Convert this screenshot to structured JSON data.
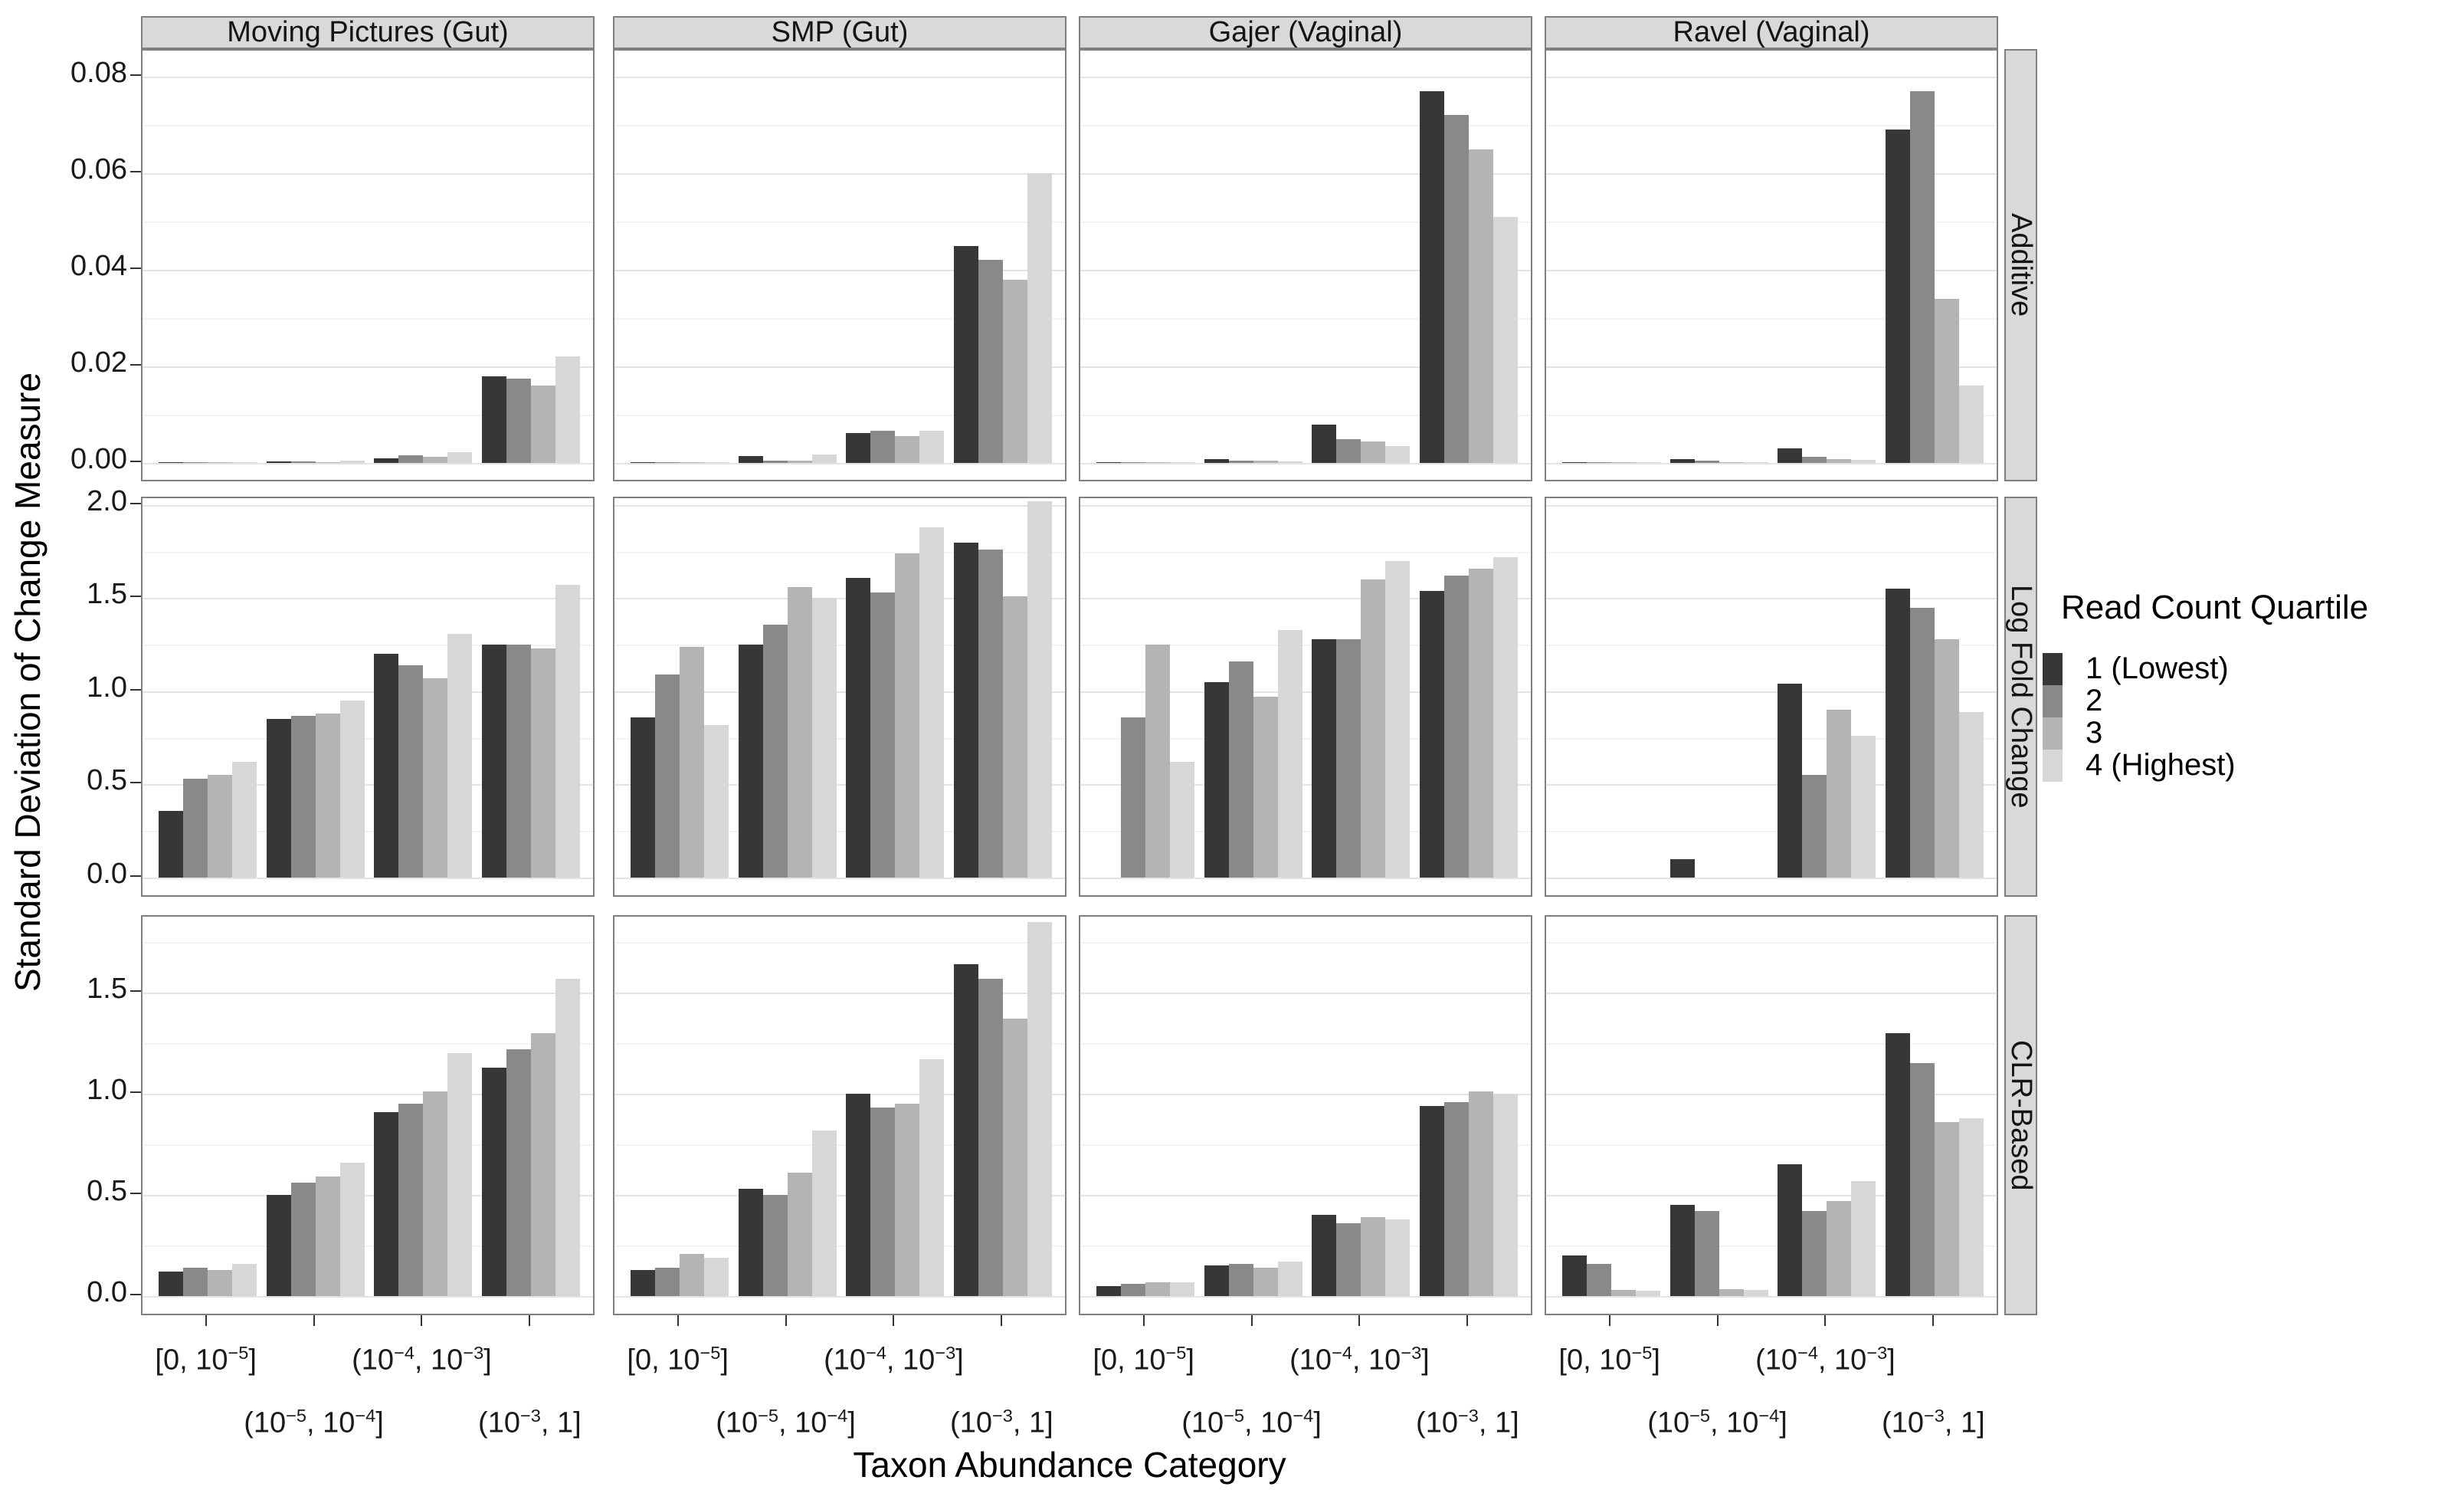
{
  "figure": {
    "x_axis_title": "Taxon Abundance Category",
    "y_axis_title": "Standard Deviation of Change Measure",
    "legend_title": "Read Count Quartile"
  },
  "chart_data": {
    "type": "bar",
    "title": "",
    "xlabel": "Taxon Abundance Category",
    "ylabel": "Standard Deviation of Change Measure",
    "legend_title": "Read Count Quartile",
    "legend_position": "right",
    "grid": "major and minor horizontal gridlines",
    "facet_columns": [
      "Moving Pictures (Gut)",
      "SMP (Gut)",
      "Gajer (Vaginal)",
      "Ravel (Vaginal)"
    ],
    "facet_rows": [
      "Additive",
      "Log Fold Change",
      "CLR-Based"
    ],
    "categories": [
      "[0, 10^-5]",
      "(10^-5, 10^-4]",
      "(10^-4, 10^-3]",
      "(10^-3, 1]"
    ],
    "series_labels": [
      "1 (Lowest)",
      "2",
      "3",
      "4 (Highest)"
    ],
    "series_colors": [
      "#373737",
      "#898989",
      "#b4b4b4",
      "#d7d7d7"
    ],
    "rows": [
      {
        "label": "Additive",
        "ymax": 0.0854,
        "minor_step": 0.01,
        "ytick_values": [
          0,
          0.02,
          0.04,
          0.06,
          0.08
        ],
        "ytick_labels": [
          "0.00",
          "0.02",
          "0.04",
          "0.06",
          "0.08"
        ],
        "panels": [
          {
            "column": "Moving Pictures (Gut)",
            "values": [
              [
                0.0001,
                0.0001,
                0.0001,
                0.0002
              ],
              [
                0.0003,
                0.0003,
                0.0002,
                0.0004
              ],
              [
                0.001,
                0.0016,
                0.0013,
                0.0022
              ],
              [
                0.018,
                0.0175,
                0.016,
                0.022
              ]
            ]
          },
          {
            "column": "SMP (Gut)",
            "values": [
              [
                0.0001,
                0.0001,
                0.0001,
                0.0001
              ],
              [
                0.0015,
                0.0004,
                0.0004,
                0.0017
              ],
              [
                0.0062,
                0.0067,
                0.0056,
                0.0067
              ],
              [
                0.045,
                0.042,
                0.038,
                0.06
              ]
            ]
          },
          {
            "column": "Gajer (Vaginal)",
            "values": [
              [
                0.0001,
                0.0001,
                0.0001,
                0.0001
              ],
              [
                0.0008,
                0.0005,
                0.0004,
                0.0003
              ],
              [
                0.008,
                0.005,
                0.0045,
                0.0035
              ],
              [
                0.077,
                0.072,
                0.065,
                0.051
              ]
            ]
          },
          {
            "column": "Ravel (Vaginal)",
            "values": [
              [
                0.0001,
                0.0001,
                0.0001,
                0.0001
              ],
              [
                0.0008,
                0.0004,
                0.0002,
                0.0002
              ],
              [
                0.003,
                0.0012,
                0.0008,
                0.0006
              ],
              [
                0.069,
                0.077,
                0.034,
                0.016
              ]
            ]
          }
        ]
      },
      {
        "label": "Log Fold Change",
        "ymax": 2.037,
        "minor_step": 0.25,
        "ytick_values": [
          0,
          0.5,
          1.0,
          1.5,
          2.0
        ],
        "ytick_labels": [
          "0.0",
          "0.5",
          "1.0",
          "1.5",
          "2.0"
        ],
        "panels": [
          {
            "column": "Moving Pictures (Gut)",
            "values": [
              [
                0.36,
                0.53,
                0.55,
                0.62
              ],
              [
                0.85,
                0.87,
                0.88,
                0.95
              ],
              [
                1.2,
                1.14,
                1.07,
                1.31
              ],
              [
                1.25,
                1.25,
                1.23,
                1.57
              ]
            ]
          },
          {
            "column": "SMP (Gut)",
            "values": [
              [
                0.86,
                1.09,
                1.24,
                0.82
              ],
              [
                1.25,
                1.36,
                1.56,
                1.5
              ],
              [
                1.61,
                1.53,
                1.74,
                1.88
              ],
              [
                1.8,
                1.76,
                1.51,
                2.02
              ]
            ]
          },
          {
            "column": "Gajer (Vaginal)",
            "values": [
              [
                0,
                0.86,
                1.25,
                0.62
              ],
              [
                1.05,
                1.16,
                0.97,
                1.33
              ],
              [
                1.28,
                1.28,
                1.6,
                1.7
              ],
              [
                1.54,
                1.62,
                1.66,
                1.72
              ]
            ]
          },
          {
            "column": "Ravel (Vaginal)",
            "values": [
              [
                0,
                0,
                0,
                0
              ],
              [
                0.1,
                0,
                0,
                0
              ],
              [
                1.04,
                0.55,
                0.9,
                0.76
              ],
              [
                1.55,
                1.45,
                1.28,
                0.89
              ]
            ]
          }
        ]
      },
      {
        "label": "CLR-Based",
        "ymax": 1.875,
        "minor_step": 0.25,
        "ytick_values": [
          0,
          0.5,
          1.0,
          1.5
        ],
        "ytick_labels": [
          "0.0",
          "0.5",
          "1.0",
          "1.5"
        ],
        "panels": [
          {
            "column": "Moving Pictures (Gut)",
            "values": [
              [
                0.12,
                0.14,
                0.13,
                0.16
              ],
              [
                0.5,
                0.56,
                0.59,
                0.66
              ],
              [
                0.91,
                0.95,
                1.01,
                1.2
              ],
              [
                1.13,
                1.22,
                1.3,
                1.57
              ]
            ]
          },
          {
            "column": "SMP (Gut)",
            "values": [
              [
                0.13,
                0.14,
                0.21,
                0.19
              ],
              [
                0.53,
                0.5,
                0.61,
                0.82
              ],
              [
                1.0,
                0.93,
                0.95,
                1.17
              ],
              [
                1.64,
                1.57,
                1.37,
                1.85
              ]
            ]
          },
          {
            "column": "Gajer (Vaginal)",
            "values": [
              [
                0.05,
                0.06,
                0.07,
                0.07
              ],
              [
                0.15,
                0.16,
                0.14,
                0.17
              ],
              [
                0.4,
                0.36,
                0.39,
                0.38
              ],
              [
                0.94,
                0.96,
                1.01,
                1.0
              ]
            ]
          },
          {
            "column": "Ravel (Vaginal)",
            "values": [
              [
                0.2,
                0.16,
                0.03,
                0.025
              ],
              [
                0.45,
                0.42,
                0.035,
                0.03
              ],
              [
                0.65,
                0.42,
                0.47,
                0.57
              ],
              [
                1.3,
                1.15,
                0.86,
                0.88
              ]
            ]
          }
        ]
      }
    ]
  }
}
